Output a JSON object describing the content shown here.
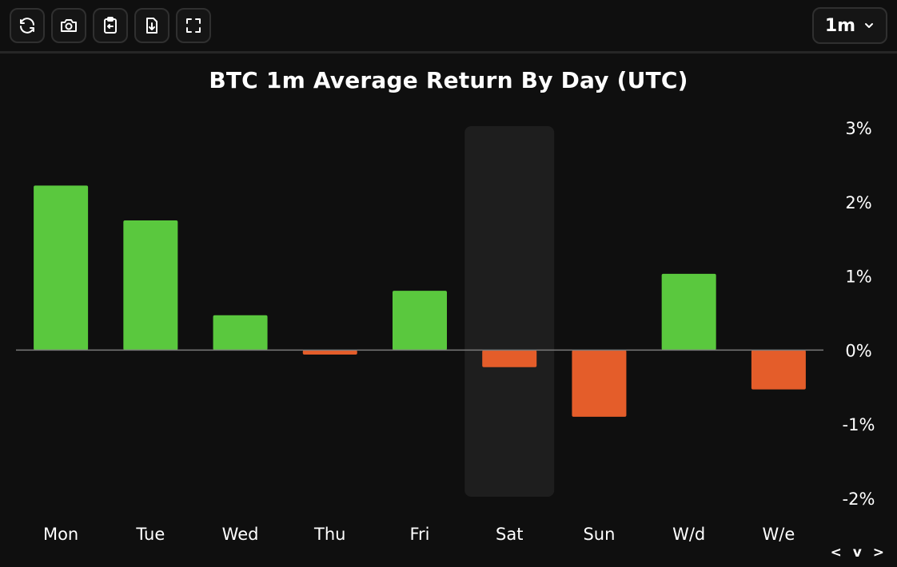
{
  "toolbar": {
    "buttons": [
      {
        "name": "refresh-button",
        "icon": "refresh-icon"
      },
      {
        "name": "screenshot-button",
        "icon": "camera-icon"
      },
      {
        "name": "copy-clipboard-button",
        "icon": "clipboard-icon"
      },
      {
        "name": "download-button",
        "icon": "download-file-icon"
      },
      {
        "name": "fullscreen-button",
        "icon": "fullscreen-icon"
      }
    ],
    "timeframe": "1m"
  },
  "colors": {
    "positive": "#5ac83e",
    "negative": "#e45d2a",
    "highlight": "#1e1e1e",
    "baseline": "#7a7a7a",
    "background": "#0f0f0f"
  },
  "chart_data": {
    "type": "bar",
    "title": "BTC 1m Average Return By Day (UTC)",
    "categories": [
      "Mon",
      "Tue",
      "Wed",
      "Thu",
      "Fri",
      "Sat",
      "Sun",
      "W/d",
      "W/e"
    ],
    "values": [
      2.22,
      1.75,
      0.47,
      -0.06,
      0.8,
      -0.23,
      -0.9,
      1.03,
      -0.53
    ],
    "unit": "%",
    "ylim": [
      -2,
      3
    ],
    "yticks": [
      "3%",
      "2%",
      "1%",
      "0%",
      "-1%",
      "-2%"
    ],
    "y_axis_position": "right",
    "highlighted_category": "Sat",
    "grid": false,
    "legend": "none"
  },
  "nav": {
    "label": "< v >"
  }
}
